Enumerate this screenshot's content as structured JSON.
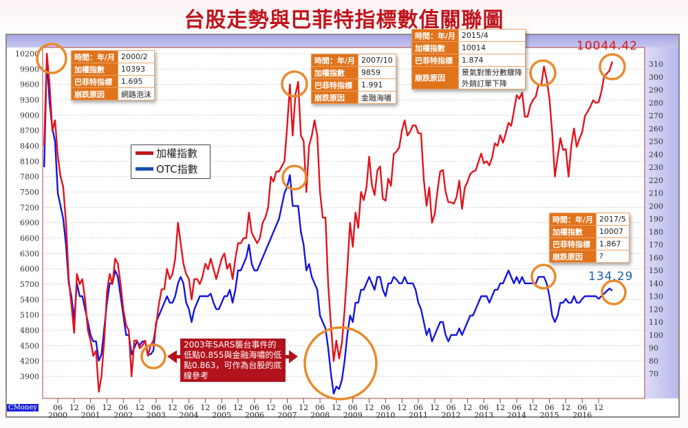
{
  "title": "台股走勢與巴菲特指標數值關聯圖",
  "watermark": "CMoney",
  "colors": {
    "taiex": "#e3121b",
    "otc": "#1414e0",
    "highlight": "#e98a2c",
    "callout": "#b2121b",
    "annotation_key": "#e1731b"
  },
  "legend": [
    {
      "label": "加權指數",
      "color": "#c0141c"
    },
    {
      "label": "OTC指數",
      "color": "#1a4fae"
    }
  ],
  "annotations": [
    {
      "rows": [
        [
          "時間：年/月",
          "2000/2"
        ],
        [
          "加權指數",
          "10393"
        ],
        [
          "巴菲特指標",
          "1.695"
        ],
        [
          "崩跌原因",
          "網路泡沫"
        ]
      ]
    },
    {
      "rows": [
        [
          "時間：年/月",
          "2007/10"
        ],
        [
          "加權指數",
          "9859"
        ],
        [
          "巴菲特指標",
          "1.991"
        ],
        [
          "崩跌原因",
          "金融海嘯"
        ]
      ]
    },
    {
      "rows": [
        [
          "時間：年/月",
          "2015/4"
        ],
        [
          "加權指數",
          "10014"
        ],
        [
          "巴菲特指標",
          "1.874"
        ],
        [
          "崩跌原因",
          "景氣對策分數驟降\n外銷訂單下降"
        ]
      ]
    },
    {
      "rows": [
        [
          "時間：年/月",
          "2017/5"
        ],
        [
          "加權指數",
          "10007"
        ],
        [
          "巴菲特指標",
          "1.867"
        ],
        [
          "崩跌原因",
          "?"
        ]
      ]
    }
  ],
  "callout": "2003年SARS襲台事件的低點0.855與金融海嘯的低點0.863，可作為台股的底線參考",
  "last_values": {
    "taiex": "10044.42",
    "otc": "134.29"
  },
  "chart_data": {
    "type": "line",
    "title": "台股走勢與巴菲特指標數值關聯圖",
    "x_start": "2000/01",
    "x_frequency": "monthly",
    "x_tick_labels": [
      "06",
      "12",
      "06",
      "12",
      "06",
      "12",
      "06",
      "12",
      "06",
      "12",
      "06",
      "12",
      "06",
      "12",
      "06",
      "12",
      "06",
      "12",
      "06",
      "12",
      "06",
      "12",
      "06",
      "12",
      "06",
      "12",
      "06",
      "12",
      "06",
      "12",
      "06",
      "12",
      "06",
      "12"
    ],
    "x_year_labels": [
      "2000",
      "2001",
      "2002",
      "2003",
      "2004",
      "2005",
      "2006",
      "2007",
      "2008",
      "2009",
      "2010",
      "2011",
      "2012",
      "2013",
      "2014",
      "2015",
      "2016"
    ],
    "y_left": {
      "range": [
        3900,
        10200
      ],
      "ticks": [
        10200,
        9900,
        9600,
        9300,
        9000,
        8700,
        8400,
        8100,
        7800,
        7500,
        7200,
        6900,
        6600,
        6300,
        6000,
        5700,
        5400,
        5100,
        4800,
        4500,
        4200,
        3900
      ]
    },
    "y_right": {
      "range": [
        70,
        310
      ],
      "ticks": [
        310,
        300,
        290,
        280,
        270,
        260,
        250,
        240,
        230,
        220,
        210,
        200,
        190,
        180,
        170,
        160,
        150,
        140,
        130,
        120,
        110,
        100,
        90,
        80,
        70
      ]
    },
    "grid": true,
    "legend_position": "left-middle",
    "series": [
      {
        "name": "加權指數",
        "axis": "left",
        "values": [
          8400,
          10200,
          9600,
          8700,
          8900,
          8200,
          7800,
          7600,
          6900,
          5800,
          5300,
          4750,
          5900,
          5700,
          5800,
          5400,
          4800,
          4600,
          4300,
          4400,
          3600,
          3900,
          4600,
          5550,
          5900,
          5700,
          6200,
          6100,
          5700,
          5200,
          4900,
          4800,
          3900,
          4600,
          4600,
          4450,
          4500,
          4600,
          4300,
          4500,
          4600,
          4900,
          5300,
          5600,
          5600,
          6000,
          5800,
          5900,
          6200,
          6900,
          6500,
          6100,
          5900,
          5800,
          5400,
          5800,
          5800,
          5700,
          5850,
          6100,
          5990,
          6200,
          6000,
          5800,
          6000,
          6200,
          6300,
          6000,
          6100,
          5800,
          6200,
          6500,
          6500,
          6600,
          6600,
          7100,
          6700,
          6600,
          6500,
          6600,
          6900,
          7000,
          7200,
          7800,
          7700,
          7900,
          7900,
          8000,
          8100,
          8800,
          9600,
          8600,
          9400,
          9650,
          8600,
          8500,
          7500,
          8400,
          8600,
          8900,
          8600,
          7500,
          7000,
          7000,
          5700,
          4900,
          4200,
          4600,
          4250,
          4550,
          5200,
          5990,
          6900,
          6430,
          7100,
          6800,
          7500,
          7340,
          7580,
          8190,
          7640,
          7440,
          7920,
          8000,
          7370,
          7330,
          7760,
          7620,
          8240,
          8290,
          8370,
          8700,
          8900,
          8600,
          8680,
          8800,
          8800,
          8650,
          8640,
          7740,
          7230,
          7590,
          6900,
          7070,
          7520,
          7900,
          7930,
          7500,
          7300,
          7300,
          7270,
          7400,
          7720,
          7170,
          7580,
          7700,
          7850,
          7900,
          7920,
          8090,
          8250,
          8060,
          8100,
          8020,
          8170,
          8450,
          8400,
          8610,
          8460,
          8640,
          8850,
          8790,
          9080,
          9390,
          9320,
          9440,
          8970,
          8970,
          9190,
          9300,
          9360,
          9600,
          9590,
          9950,
          9700,
          9320,
          8660,
          7800,
          8180,
          8550,
          8320,
          8340,
          7800,
          8410,
          8740,
          8380,
          8540,
          8670,
          8980,
          9070,
          9170,
          9290,
          9240,
          9250,
          9450,
          9750,
          9810,
          9870,
          10044.42
        ]
      },
      {
        "name": "OTC指數",
        "axis": "right",
        "values": [
          230,
          315,
          280,
          260,
          250,
          210,
          200,
          190,
          170,
          140,
          130,
          112,
          140,
          130,
          130,
          120,
          110,
          100,
          95,
          95,
          80,
          85,
          105,
          125,
          140,
          140,
          150,
          145,
          130,
          115,
          100,
          100,
          85,
          90,
          95,
          92,
          95,
          95,
          85,
          85,
          88,
          110,
          115,
          120,
          125,
          130,
          125,
          125,
          130,
          140,
          145,
          140,
          125,
          120,
          110,
          120,
          125,
          130,
          130,
          130,
          130,
          132,
          125,
          120,
          120,
          125,
          130,
          130,
          135,
          125,
          135,
          150,
          150,
          155,
          160,
          170,
          155,
          150,
          150,
          155,
          160,
          165,
          170,
          175,
          180,
          185,
          190,
          200,
          210,
          215,
          224,
          200,
          200,
          200,
          180,
          170,
          150,
          155,
          145,
          140,
          135,
          115,
          110,
          105,
          90,
          70,
          50,
          60,
          58,
          65,
          80,
          100,
          115,
          110,
          125,
          125,
          135,
          135,
          140,
          145,
          140,
          135,
          145,
          145,
          135,
          130,
          140,
          140,
          145,
          143,
          140,
          140,
          145,
          140,
          140,
          140,
          135,
          125,
          120,
          110,
          100,
          105,
          95,
          100,
          105,
          110,
          110,
          100,
          95,
          100,
          100,
          100,
          105,
          100,
          105,
          110,
          115,
          115,
          120,
          125,
          130,
          130,
          130,
          125,
          130,
          135,
          135,
          140,
          140,
          145,
          150,
          145,
          140,
          145,
          140,
          145,
          140,
          140,
          140,
          140,
          140,
          145,
          145,
          145,
          140,
          130,
          115,
          110,
          115,
          125,
          125,
          128,
          125,
          125,
          130,
          125,
          125,
          128,
          130,
          130,
          130,
          130,
          130,
          128,
          130,
          132,
          134,
          136,
          134.29
        ]
      }
    ]
  }
}
